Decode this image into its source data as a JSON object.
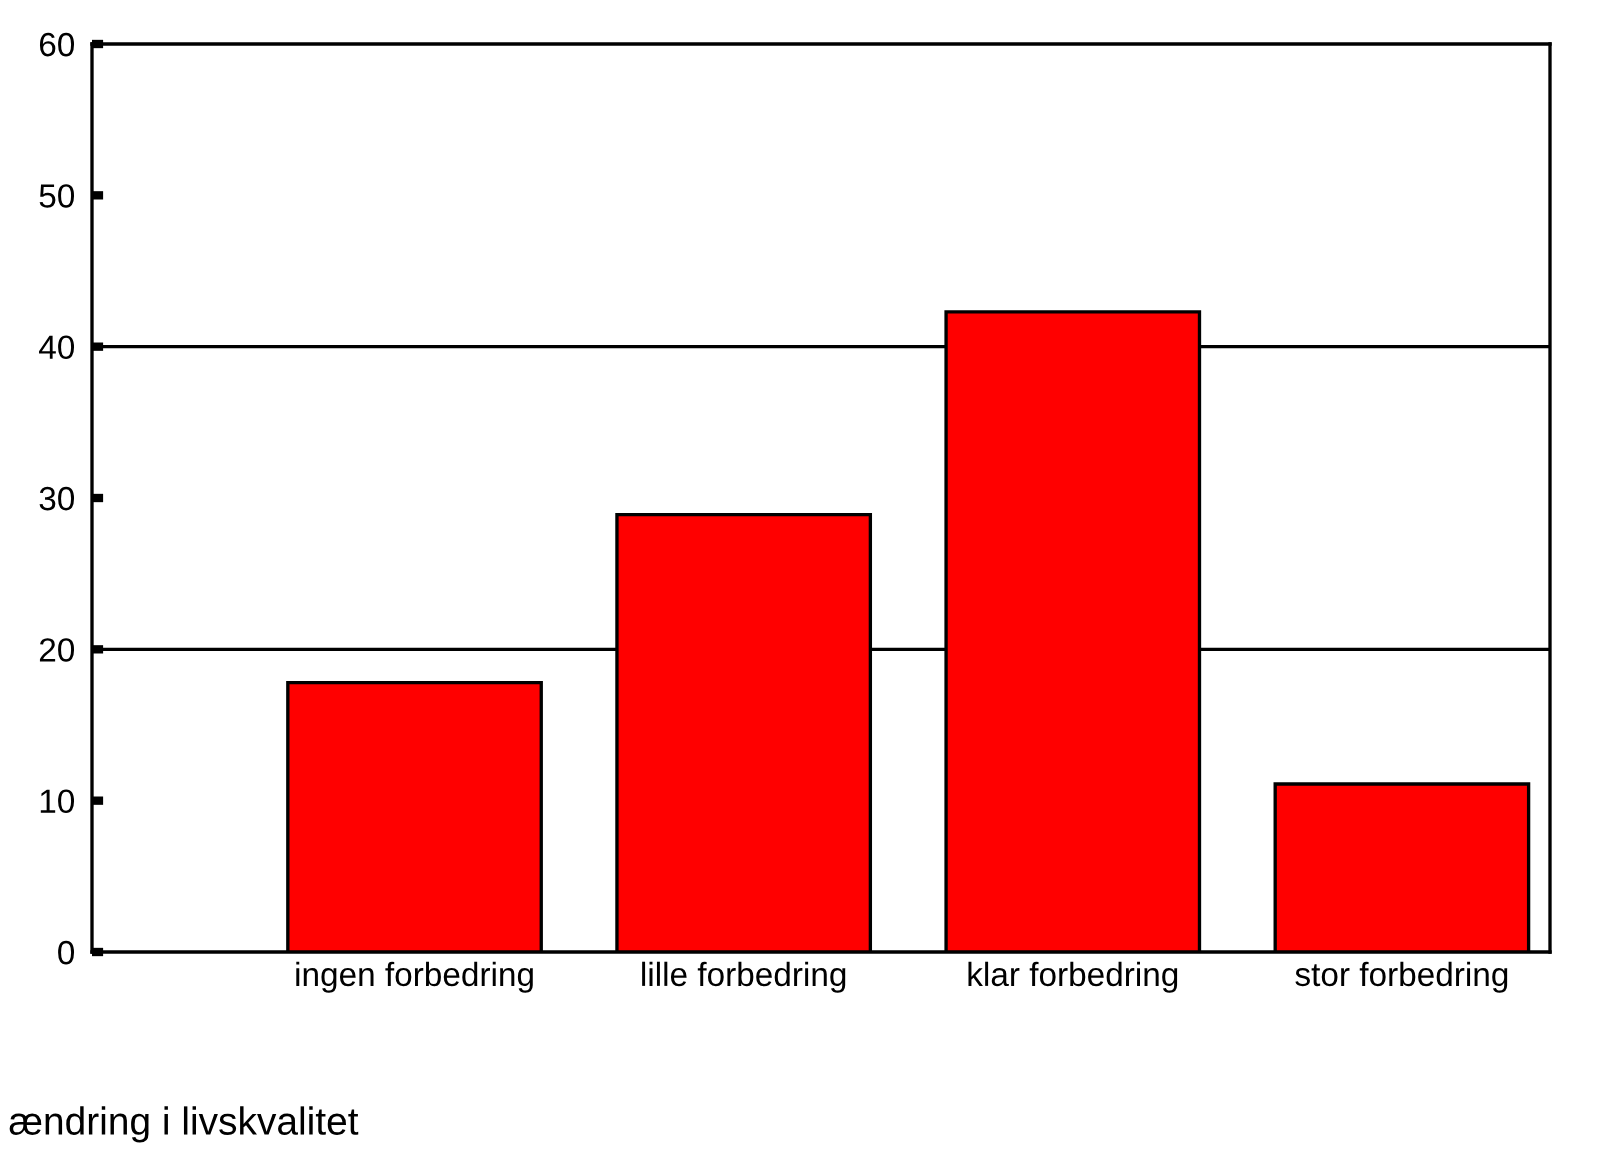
{
  "chart_data": {
    "type": "bar",
    "xlabel": "ændring i livskvalitet",
    "categories": [
      "ingen forbedring",
      "lille forbedring",
      "klar forbedring",
      "stor forbedring"
    ],
    "values": [
      17.8,
      28.9,
      42.3,
      11.1
    ],
    "color": "#ff0000",
    "ylim": [
      0,
      60
    ],
    "yticks": [
      0,
      10,
      20,
      30,
      40,
      50,
      60
    ],
    "ref_lines": [
      {
        "axis": "y",
        "value": 20,
        "color": "#000000"
      },
      {
        "axis": "y",
        "value": 40,
        "color": "#000000"
      }
    ],
    "grid": false,
    "legend": false
  }
}
